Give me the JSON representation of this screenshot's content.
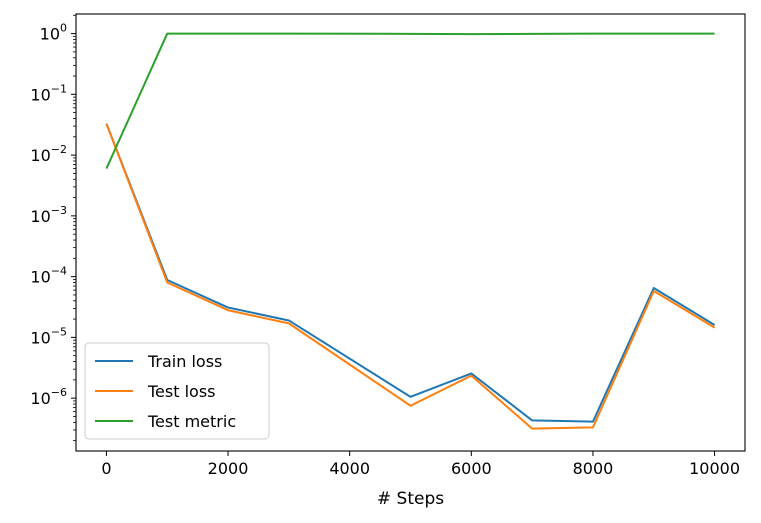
{
  "chart_data": {
    "type": "line",
    "xlabel": "# Steps",
    "ylabel": "",
    "title": "",
    "yscale": "log",
    "xlim": [
      -500,
      10500
    ],
    "ylim": [
      1.35e-07,
      2.1
    ],
    "x_ticks": [
      0,
      2000,
      4000,
      6000,
      8000,
      10000
    ],
    "x_tick_labels": [
      "0",
      "2000",
      "4000",
      "6000",
      "8000",
      "10000"
    ],
    "y_ticks": [
      {
        "value": 1e-06,
        "base": "10",
        "exp": "−6"
      },
      {
        "value": 1e-05,
        "base": "10",
        "exp": "−5"
      },
      {
        "value": 0.0001,
        "base": "10",
        "exp": "−4"
      },
      {
        "value": 0.001,
        "base": "10",
        "exp": "−3"
      },
      {
        "value": 0.01,
        "base": "10",
        "exp": "−2"
      },
      {
        "value": 0.1,
        "base": "10",
        "exp": "−1"
      },
      {
        "value": 1,
        "base": "10",
        "exp": "0"
      }
    ],
    "grid": false,
    "legend_position": "lower-left",
    "x": [
      0,
      1000,
      2000,
      3000,
      5000,
      6000,
      7000,
      8000,
      9000,
      10000
    ],
    "series": [
      {
        "name": "Train loss",
        "color": "#1f77b4",
        "values": [
          0.033,
          8.8e-05,
          3.1e-05,
          1.9e-05,
          1.05e-06,
          2.55e-06,
          4.3e-07,
          4.1e-07,
          6.5e-05,
          1.6e-05
        ]
      },
      {
        "name": "Test loss",
        "color": "#ff7f0e",
        "values": [
          0.033,
          8e-05,
          2.8e-05,
          1.7e-05,
          7.5e-07,
          2.35e-06,
          3.15e-07,
          3.3e-07,
          5.8e-05,
          1.45e-05
        ]
      },
      {
        "name": "Test metric",
        "color": "#2ca02c",
        "values": [
          0.006,
          1.0,
          1.0,
          1.0,
          0.99,
          0.98,
          0.99,
          1.0,
          1.0,
          1.0
        ]
      }
    ]
  }
}
